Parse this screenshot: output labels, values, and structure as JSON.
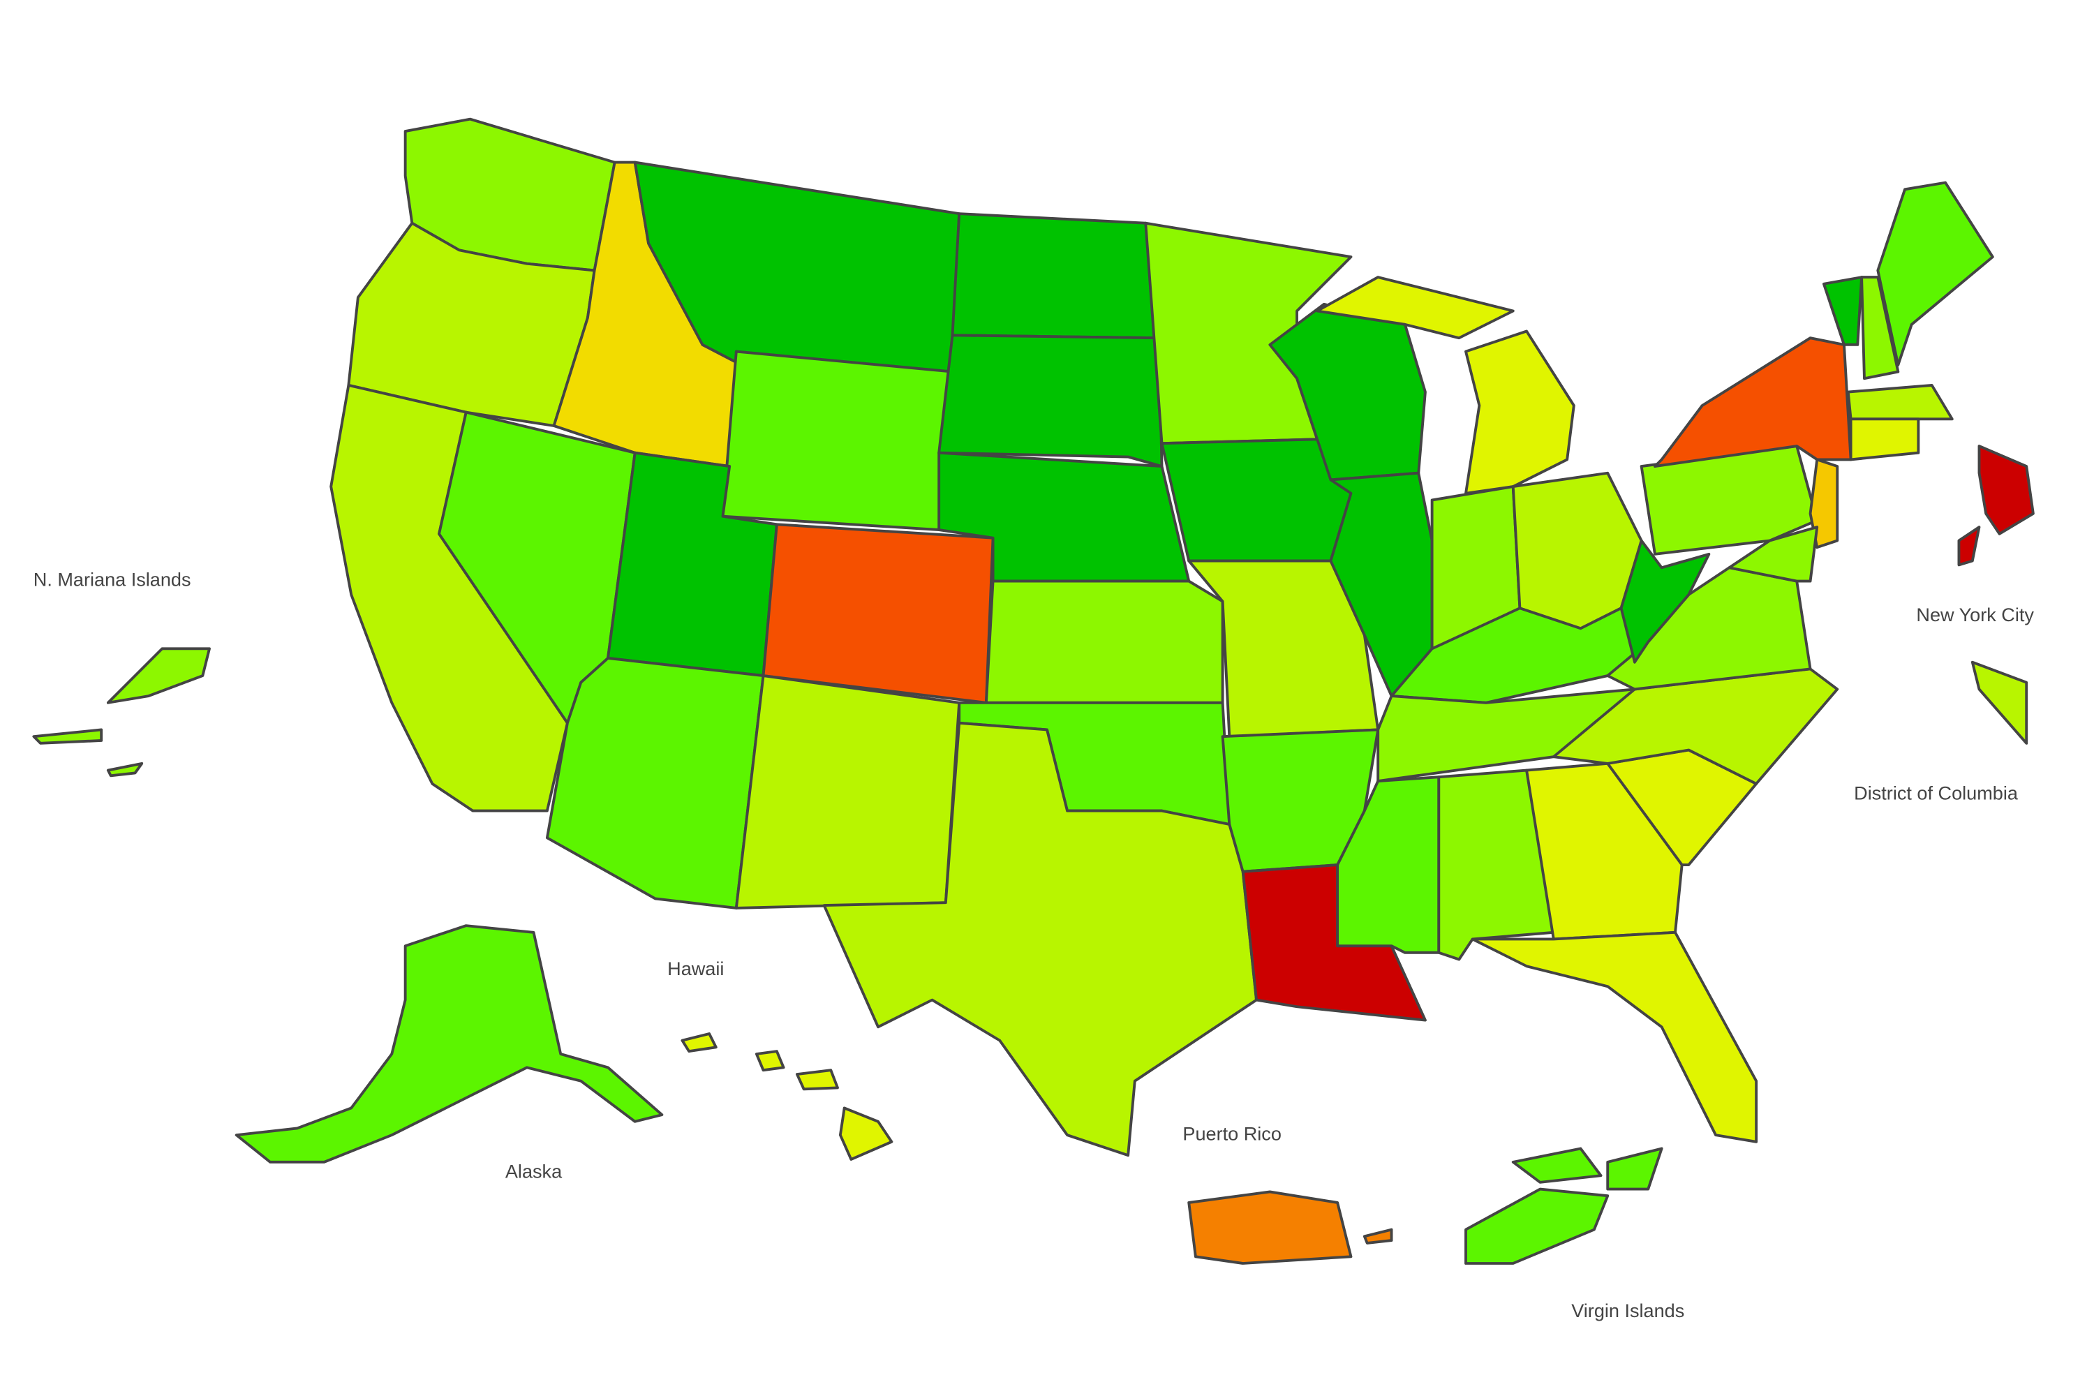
{
  "labels": [
    "N. Mariana Islands",
    "New York City",
    "District of Columbia",
    "Hawaii",
    "Puerto Rico",
    "Alaska",
    "Virgin Islands"
  ]
}
